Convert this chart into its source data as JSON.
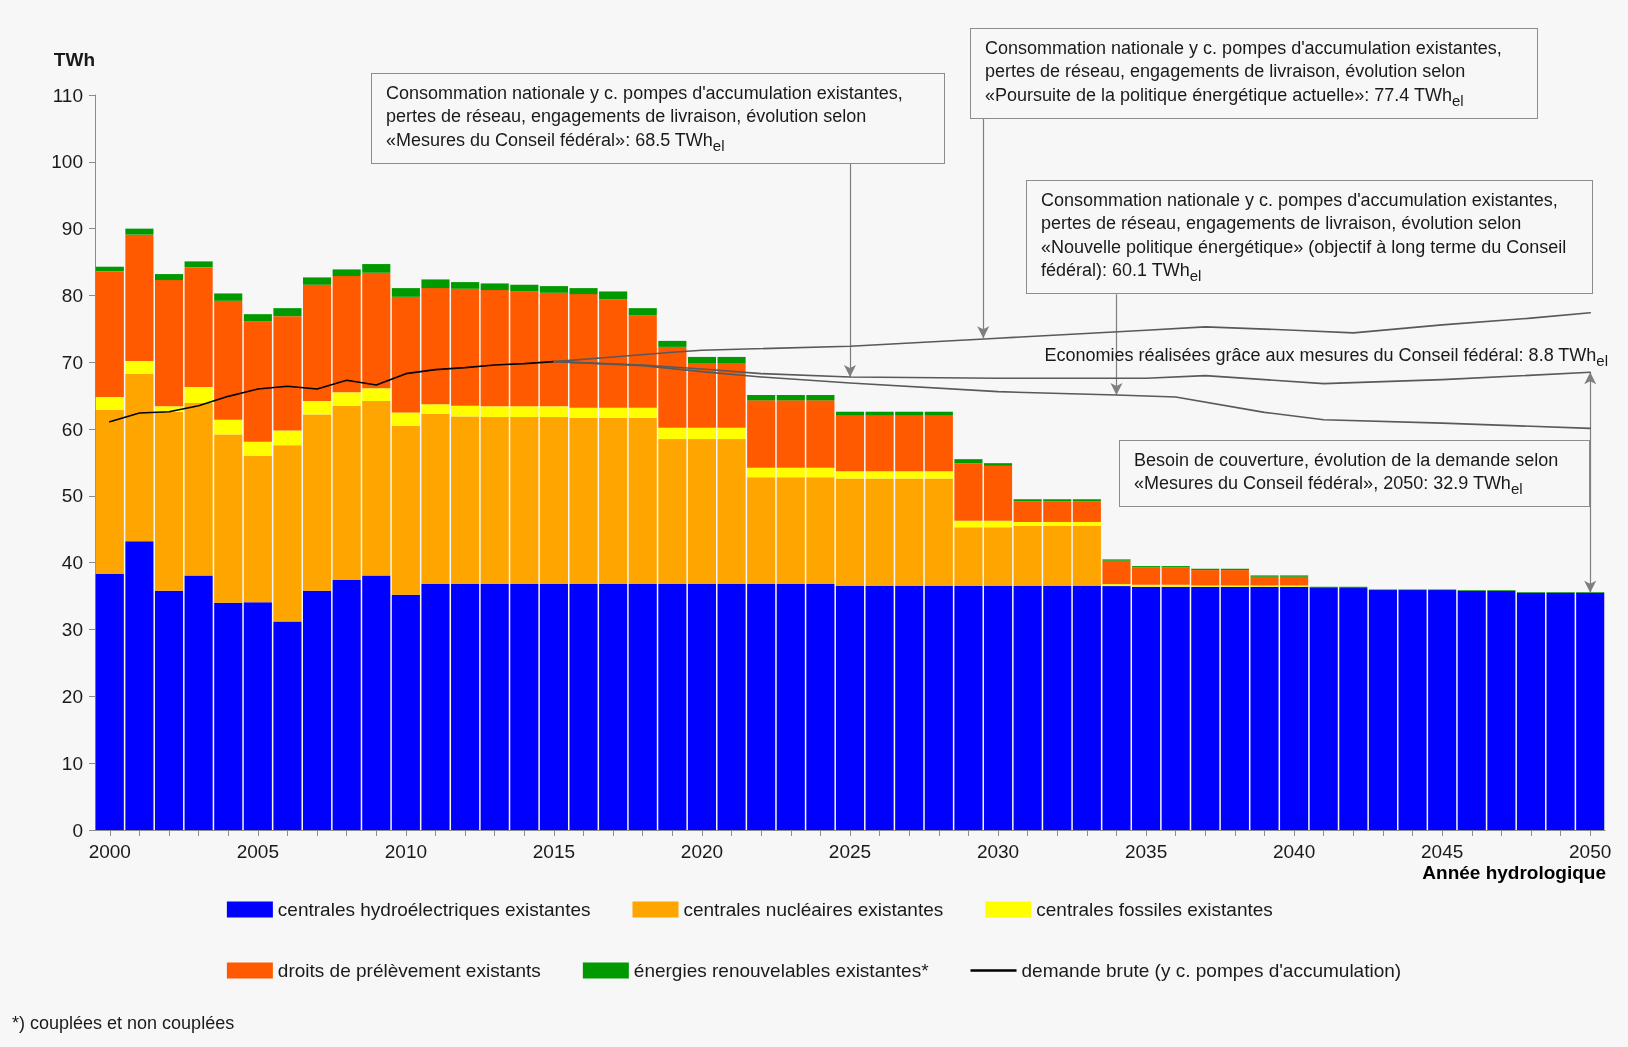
{
  "chart_data": {
    "type": "bar",
    "stacked": true,
    "legend": "bottom",
    "ylabel": "TWh",
    "xlabel": "Année hydrologique",
    "x": [
      2000,
      2001,
      2002,
      2003,
      2004,
      2005,
      2006,
      2007,
      2008,
      2009,
      2010,
      2011,
      2012,
      2013,
      2014,
      2015,
      2016,
      2017,
      2018,
      2019,
      2020,
      2021,
      2022,
      2023,
      2024,
      2025,
      2026,
      2027,
      2028,
      2029,
      2030,
      2031,
      2032,
      2033,
      2034,
      2035,
      2036,
      2037,
      2038,
      2039,
      2040,
      2041,
      2042,
      2043,
      2044,
      2045,
      2046,
      2047,
      2048,
      2049,
      2050
    ],
    "xlim": [
      1999.5,
      2050.5
    ],
    "xticks": [
      2000,
      {
        "value": 2001,
        "label": null
      },
      {
        "value": 2002,
        "label": null
      },
      {
        "value": 2003,
        "label": null
      },
      {
        "value": 2004,
        "label": null
      },
      2005,
      {
        "value": 2006,
        "label": null
      },
      {
        "value": 2007,
        "label": null
      },
      {
        "value": 2008,
        "label": null
      },
      {
        "value": 2009,
        "label": null
      },
      2010,
      {
        "value": 2011,
        "label": null
      },
      {
        "value": 2012,
        "label": null
      },
      {
        "value": 2013,
        "label": null
      },
      {
        "value": 2014,
        "label": null
      },
      2015,
      {
        "value": 2016,
        "label": null
      },
      {
        "value": 2017,
        "label": null
      },
      {
        "value": 2018,
        "label": null
      },
      {
        "value": 2019,
        "label": null
      },
      2020,
      {
        "value": 2021,
        "label": null
      },
      {
        "value": 2022,
        "label": null
      },
      {
        "value": 2023,
        "label": null
      },
      {
        "value": 2024,
        "label": null
      },
      2025,
      {
        "value": 2026,
        "label": null
      },
      {
        "value": 2027,
        "label": null
      },
      {
        "value": 2028,
        "label": null
      },
      {
        "value": 2029,
        "label": null
      },
      2030,
      {
        "value": 2031,
        "label": null
      },
      {
        "value": 2032,
        "label": null
      },
      {
        "value": 2033,
        "label": null
      },
      {
        "value": 2034,
        "label": null
      },
      2035,
      {
        "value": 2036,
        "label": null
      },
      {
        "value": 2037,
        "label": null
      },
      {
        "value": 2038,
        "label": null
      },
      {
        "value": 2039,
        "label": null
      },
      2040,
      {
        "value": 2041,
        "label": null
      },
      {
        "value": 2042,
        "label": null
      },
      {
        "value": 2043,
        "label": null
      },
      {
        "value": 2044,
        "label": null
      },
      2045,
      {
        "value": 2046,
        "label": null
      },
      {
        "value": 2047,
        "label": null
      },
      {
        "value": 2048,
        "label": null
      },
      {
        "value": 2049,
        "label": null
      },
      2050
    ],
    "ylim": [
      0,
      110
    ],
    "yticks": [
      0,
      10,
      20,
      30,
      40,
      50,
      60,
      70,
      80,
      90,
      100,
      110
    ],
    "series": [
      {
        "name": "centrales hydroélectriques existantes",
        "color": "#0000ff",
        "values": [
          38.3,
          43.2,
          35.8,
          38.1,
          34.0,
          34.1,
          31.2,
          35.8,
          37.4,
          38.1,
          35.2,
          36.8,
          36.8,
          36.8,
          36.8,
          36.8,
          36.8,
          36.8,
          36.8,
          36.8,
          36.8,
          36.8,
          36.8,
          36.8,
          36.8,
          36.5,
          36.5,
          36.5,
          36.5,
          36.5,
          36.5,
          36.5,
          36.5,
          36.5,
          36.5,
          36.4,
          36.4,
          36.4,
          36.4,
          36.4,
          36.4,
          36.2,
          36.2,
          35.9,
          35.9,
          35.9,
          35.8,
          35.8,
          35.5,
          35.5,
          35.5
        ]
      },
      {
        "name": "centrales nucléaires existantes",
        "color": "#ffa500",
        "values": [
          24.6,
          25.1,
          26.8,
          25.8,
          25.2,
          21.9,
          26.4,
          26.4,
          26.1,
          26.1,
          25.3,
          25.5,
          25.1,
          25.0,
          25.0,
          25.0,
          24.9,
          24.9,
          24.9,
          21.7,
          21.7,
          21.7,
          16.0,
          16.0,
          16.0,
          16.1,
          16.1,
          16.1,
          16.1,
          8.8,
          8.8,
          9.0,
          9.0,
          9.0,
          0,
          0,
          0,
          0,
          0,
          0,
          0,
          0,
          0,
          0,
          0,
          0,
          0,
          0,
          0,
          0,
          0
        ]
      },
      {
        "name": "centrales fossiles existantes",
        "color": "#ffff00",
        "values": [
          1.9,
          1.9,
          0.8,
          2.4,
          2.2,
          2.1,
          2.2,
          2.0,
          2.0,
          1.9,
          2.0,
          1.4,
          1.6,
          1.6,
          1.6,
          1.6,
          1.5,
          1.5,
          1.5,
          1.7,
          1.7,
          1.7,
          1.4,
          1.4,
          1.4,
          1.1,
          1.1,
          1.1,
          1.1,
          1.0,
          1.0,
          0.6,
          0.6,
          0.6,
          0.3,
          0.3,
          0.3,
          0.2,
          0.2,
          0.2,
          0.2,
          0,
          0,
          0,
          0,
          0,
          0,
          0,
          0,
          0,
          0
        ]
      },
      {
        "name": "droits de prélèvement existants",
        "color": "#ff5a00",
        "values": [
          18.8,
          18.9,
          18.9,
          17.9,
          17.8,
          18.0,
          17.1,
          17.4,
          17.4,
          17.3,
          17.3,
          17.4,
          17.5,
          17.4,
          17.2,
          17.0,
          17.0,
          16.2,
          13.8,
          12.1,
          9.6,
          9.6,
          10.1,
          10.1,
          10.1,
          8.3,
          8.3,
          8.3,
          8.3,
          8.6,
          8.2,
          3.1,
          3.1,
          3.1,
          3.5,
          2.6,
          2.6,
          2.3,
          2.3,
          1.3,
          1.3,
          0,
          0,
          0,
          0,
          0,
          0,
          0,
          0,
          0,
          0
        ]
      },
      {
        "name": "énergies renouvelables existantes*",
        "color": "#009a00",
        "values": [
          0.7,
          0.9,
          0.9,
          0.9,
          1.1,
          1.1,
          1.2,
          1.1,
          1.0,
          1.3,
          1.3,
          1.3,
          1.0,
          1.0,
          1.0,
          1.0,
          0.9,
          1.2,
          1.1,
          0.9,
          1.0,
          1.0,
          0.8,
          0.8,
          0.8,
          0.6,
          0.6,
          0.6,
          0.6,
          0.6,
          0.4,
          0.3,
          0.3,
          0.3,
          0.2,
          0.2,
          0.2,
          0.2,
          0.2,
          0.2,
          0.2,
          0.2,
          0.2,
          0.1,
          0.1,
          0.1,
          0.1,
          0.1,
          0.1,
          0.1,
          0.1
        ]
      },
      {
        "name": "demande brute (y c. pompes d'accumulation)",
        "type": "line",
        "color": "#000000",
        "x": [
          2000,
          2001,
          2002,
          2003,
          2004,
          2005,
          2006,
          2007,
          2008,
          2009,
          2010,
          2011,
          2012,
          2013,
          2014,
          2015
        ],
        "values": [
          61.1,
          62.4,
          62.6,
          63.5,
          64.9,
          66.0,
          66.4,
          66.0,
          67.3,
          66.6,
          68.3,
          68.9,
          69.2,
          69.6,
          69.8,
          70.1
        ]
      },
      {
        "type": "line",
        "color": "#595959",
        "x": [
          2015,
          2017,
          2019,
          2020,
          2025,
          2030,
          2035,
          2037,
          2040,
          2042,
          2045,
          2048,
          2050
        ],
        "values": [
          70.1,
          70.8,
          71.5,
          71.8,
          72.4,
          73.6,
          74.8,
          75.3,
          74.8,
          74.4,
          75.6,
          76.6,
          77.4
        ]
      },
      {
        "type": "line",
        "color": "#595959",
        "x": [
          2015,
          2018,
          2020,
          2022,
          2025,
          2030,
          2035,
          2037,
          2041,
          2045,
          2050
        ],
        "values": [
          70.1,
          69.6,
          69.0,
          68.3,
          67.8,
          67.6,
          67.6,
          68.0,
          66.8,
          67.4,
          68.5
        ]
      },
      {
        "type": "line",
        "color": "#595959",
        "x": [
          2015,
          2018,
          2020,
          2022,
          2025,
          2030,
          2034,
          2036,
          2039,
          2041,
          2045,
          2050
        ],
        "values": [
          70.1,
          69.5,
          68.6,
          67.8,
          66.9,
          65.6,
          65.1,
          64.8,
          62.5,
          61.4,
          60.9,
          60.1
        ]
      }
    ],
    "annotations": [
      {
        "text": "Consommation nationale y c. pompes d'accumulation existantes, pertes de réseau, engagements de livraison, évolution selon «Mesures du Conseil fédéral»: 68.5 TWh$_{el}$",
        "x": 2025,
        "y": 67.8
      },
      {
        "text": "Consommation nationale y c. pompes d'accumulation existantes, pertes de réseau, engagements de livraison, évolution selon «Poursuite de la politique énergétique actuelle»: 77.4 TWh$_{el}$",
        "x": 2029.5,
        "y": 73.6
      },
      {
        "text": "Consommation nationale y c. pompes d'accumulation existantes, pertes de réseau, engagements de livraison, évolution selon «Nouvelle politique énergétique» (objectif à long terme du Conseil fédéral): 60.1 TWh$_{el}$",
        "x": 2034,
        "y": 65.1
      },
      {
        "text": "Economies réalisées grâce aux mesures du Conseil fédéral: 8.8 TWh$_{el}$",
        "x": 2050,
        "y": 68.5
      },
      "Besoin de couverture, évolution de la demande selon «Mesures du Conseil fédéral», 2050: 32.9 TWh$_{el}$",
      "*) couplées et non couplées"
    ]
  }
}
